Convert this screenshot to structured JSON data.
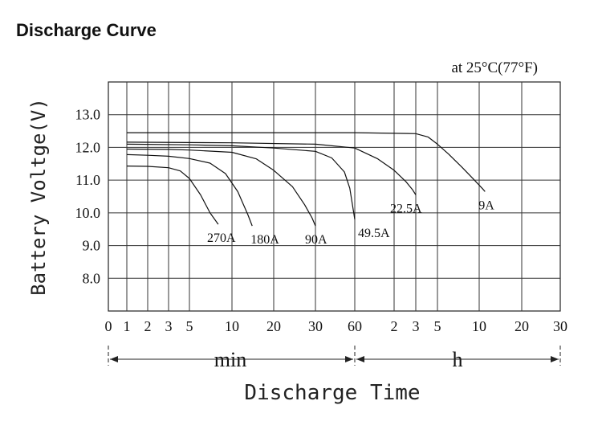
{
  "chart_data": {
    "type": "line",
    "title": "Discharge Curve",
    "condition": "at 25°C(77°F)",
    "xlabel": "Discharge Time",
    "ylabel": "Battery Voltge(V)",
    "ylim": [
      7.0,
      14.0
    ],
    "yticks": [
      "13.0",
      "12.0",
      "11.0",
      "10.0",
      "9.0",
      "8.0"
    ],
    "xticks": [
      "0",
      "1",
      "2",
      "3",
      "5",
      "10",
      "20",
      "30",
      "60",
      "2",
      "3",
      "5",
      "10",
      "20",
      "30"
    ],
    "x_units": [
      "min",
      "h"
    ],
    "grid": true,
    "series": [
      {
        "name": "270A",
        "x_min": [
          1,
          2,
          3,
          4,
          5,
          6,
          7,
          8
        ],
        "y": [
          11.43,
          11.42,
          11.38,
          11.28,
          11.05,
          10.55,
          10.0,
          9.65
        ]
      },
      {
        "name": "180A",
        "x_min": [
          1,
          2,
          3,
          5,
          7,
          9,
          11,
          13,
          14
        ],
        "y": [
          11.78,
          11.76,
          11.73,
          11.66,
          11.52,
          11.2,
          10.65,
          9.95,
          9.6
        ]
      },
      {
        "name": "90A",
        "x_min": [
          1,
          3,
          5,
          10,
          15,
          20,
          24,
          27,
          29,
          30
        ],
        "y": [
          11.95,
          11.94,
          11.92,
          11.85,
          11.65,
          11.3,
          10.8,
          10.25,
          9.85,
          9.6
        ]
      },
      {
        "name": "49.5A",
        "x_min": [
          1,
          5,
          10,
          20,
          30,
          40,
          50,
          55,
          60
        ],
        "y": [
          12.1,
          12.08,
          12.05,
          11.98,
          11.88,
          11.68,
          11.25,
          10.75,
          9.8
        ]
      },
      {
        "name": "22.5A",
        "x_min": [
          1,
          10,
          30,
          60,
          90,
          120,
          150,
          170,
          180
        ],
        "y": [
          12.16,
          12.14,
          12.1,
          11.98,
          11.65,
          11.3,
          10.95,
          10.7,
          10.55
        ]
      },
      {
        "name": "9A",
        "x_min": [
          1,
          10,
          60,
          180,
          240,
          300,
          360,
          450,
          540,
          630,
          660
        ],
        "y": [
          12.45,
          12.45,
          12.45,
          12.42,
          12.32,
          12.1,
          11.8,
          11.4,
          11.05,
          10.75,
          10.65
        ]
      }
    ]
  }
}
